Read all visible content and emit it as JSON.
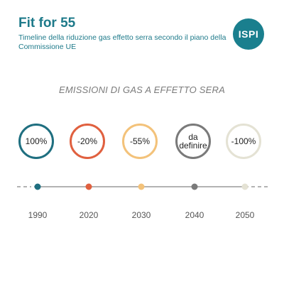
{
  "header": {
    "title": "Fit for 55",
    "subtitle": "Timeline della riduzione gas effetto serra secondo il piano della Commissione UE",
    "logo_text": "ISPI"
  },
  "section_title": "EMISSIONI DI GAS A EFFETTO SERA",
  "milestones": [
    {
      "year": "1990",
      "value": "100%",
      "color": "#1f6f80"
    },
    {
      "year": "2020",
      "value": "-20%",
      "color": "#e0603f"
    },
    {
      "year": "2030",
      "value": "-55%",
      "color": "#f3c27a"
    },
    {
      "year": "2040",
      "value": "da definire",
      "value_line1": "da",
      "value_line2": "definire",
      "color": "#7a7a7a"
    },
    {
      "year": "2050",
      "value": "-100%",
      "color": "#e4e2d4"
    }
  ],
  "colors": {
    "brand": "#1e7a8a",
    "line": "#9a9a9a"
  }
}
